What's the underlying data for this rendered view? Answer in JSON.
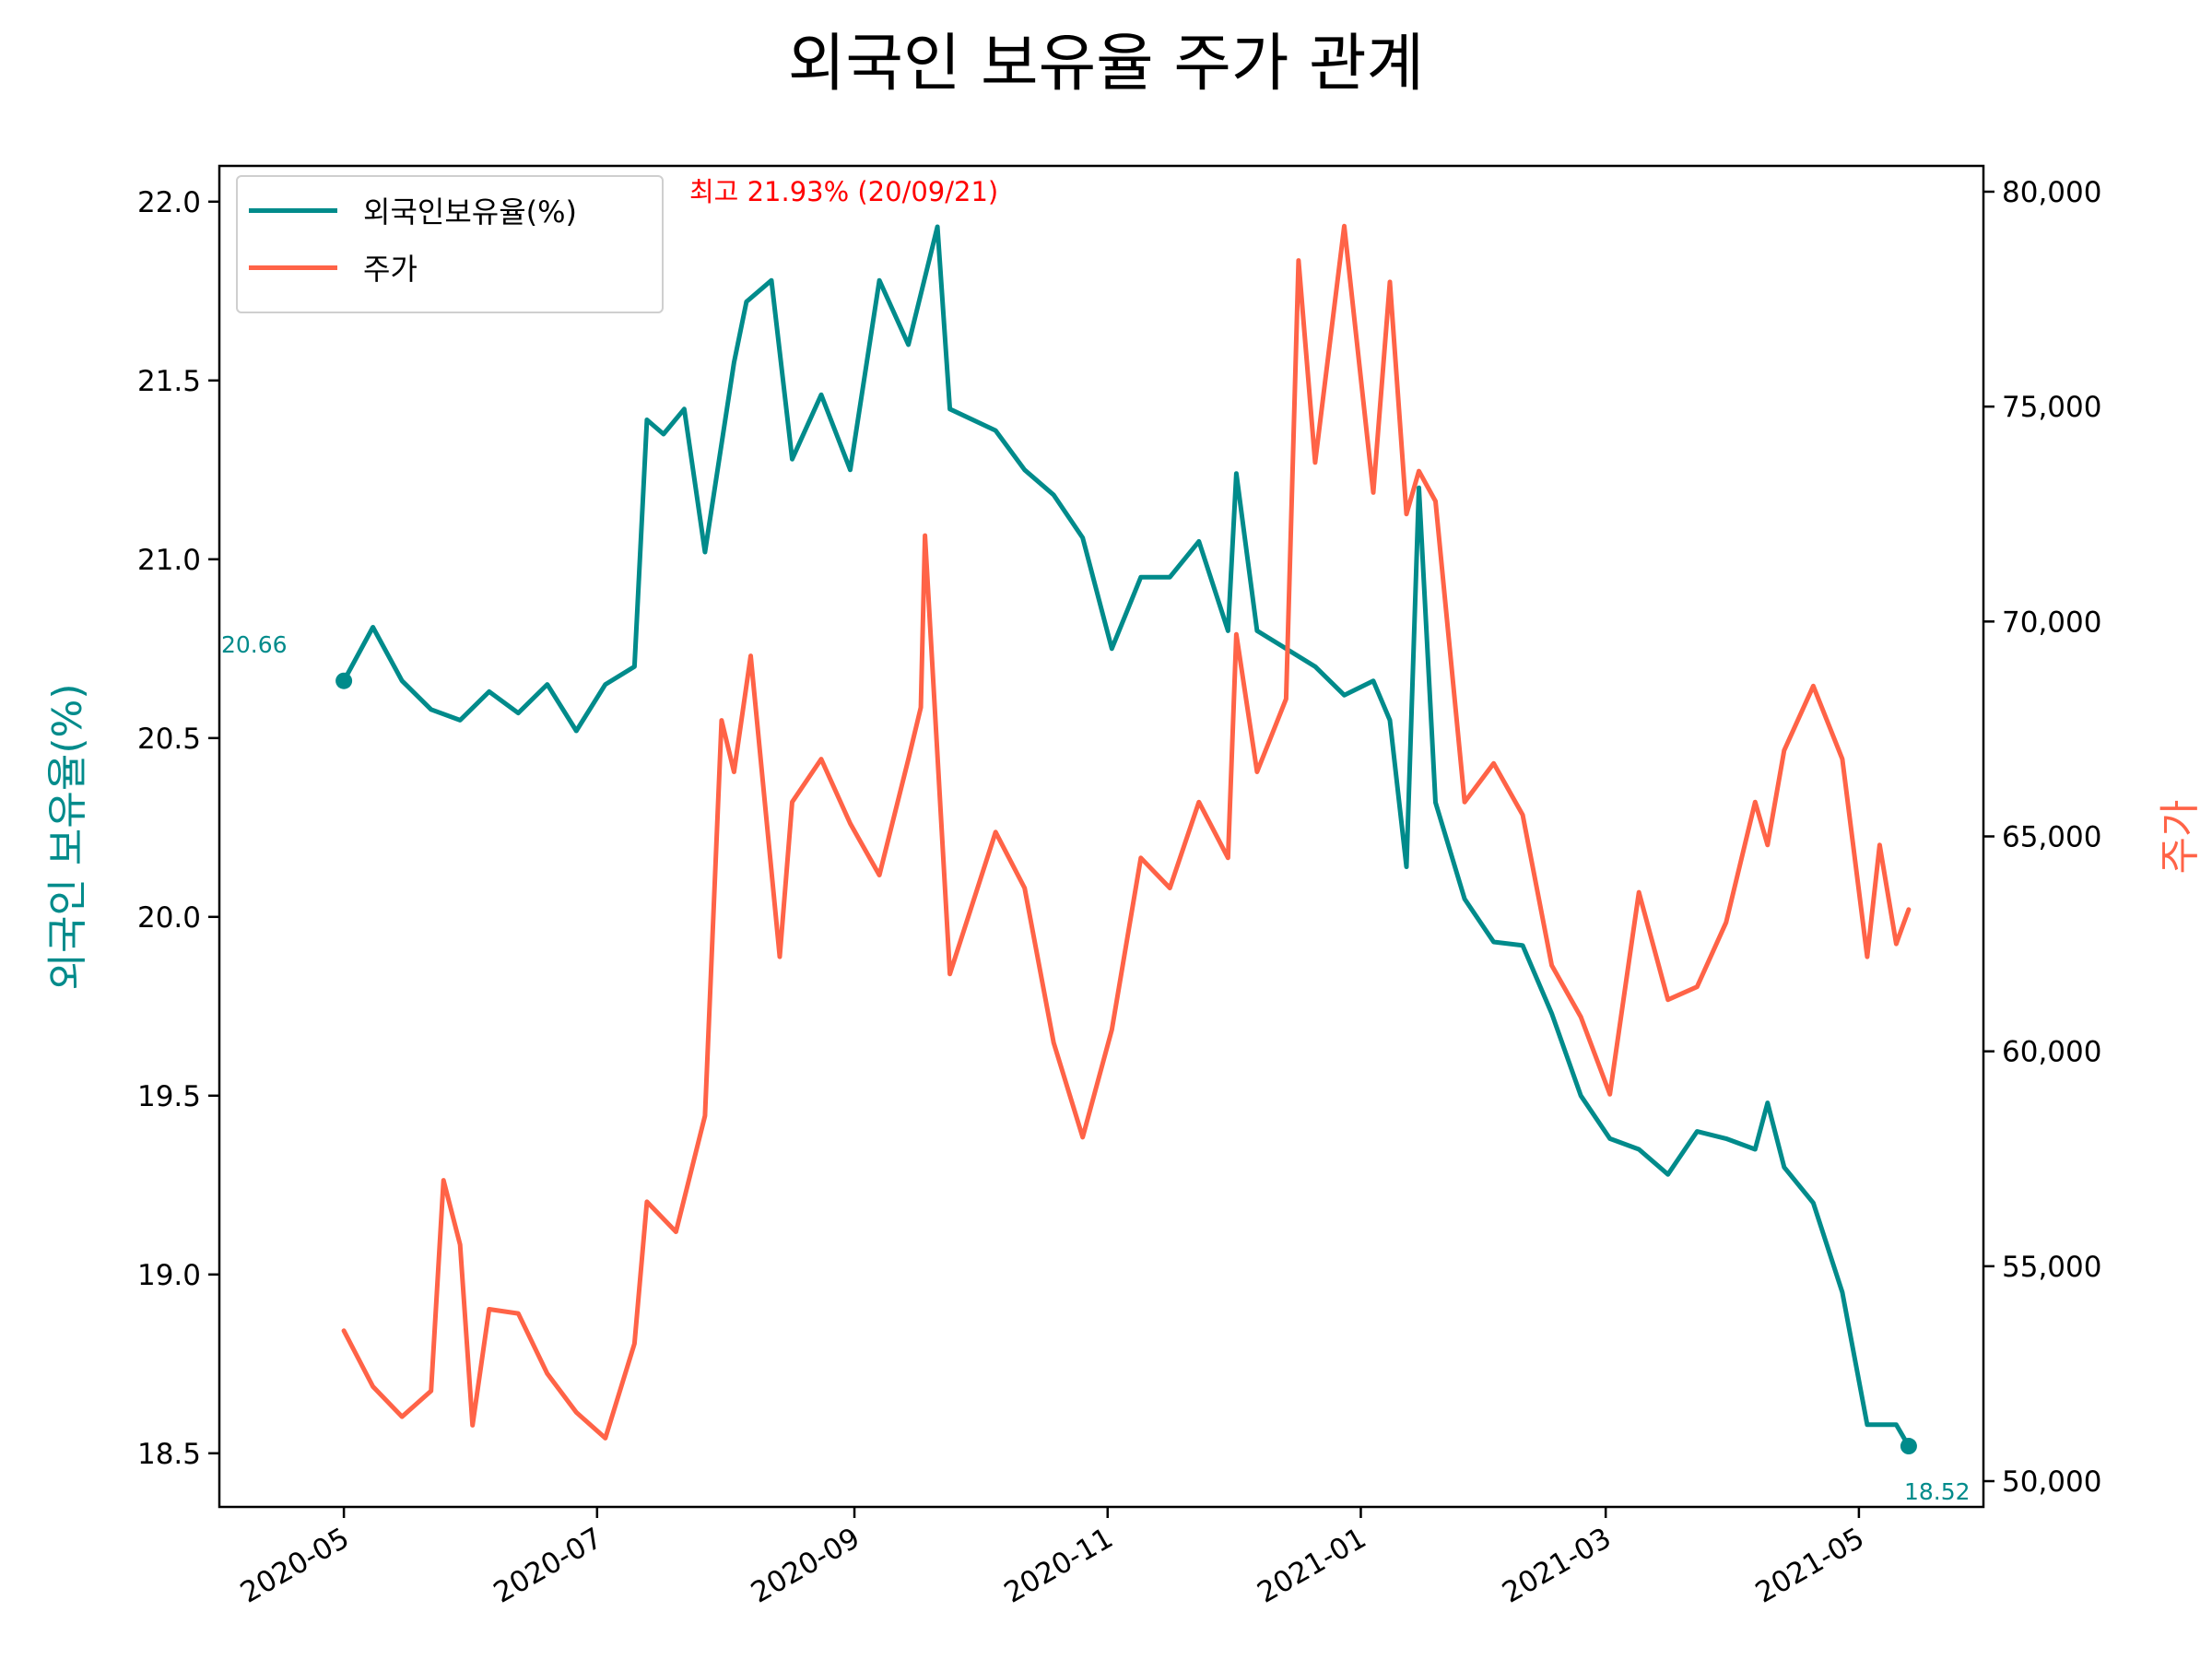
{
  "chart_data": {
    "type": "line",
    "title": "외국인 보유율 주가 관계",
    "xlabel": "",
    "ylabel_left": "외국인 보유율(%)",
    "ylabel_right": "주가",
    "x_ticks": [
      "2020-05",
      "2020-07",
      "2020-09",
      "2020-11",
      "2021-01",
      "2021-03",
      "2021-05"
    ],
    "y_left_ticks": [
      "18.5",
      "19.0",
      "19.5",
      "20.0",
      "20.5",
      "21.0",
      "21.5",
      "22.0"
    ],
    "y_right_ticks": [
      "50,000",
      "55,000",
      "60,000",
      "65,000",
      "70,000",
      "75,000",
      "80,000"
    ],
    "ylim_left": [
      18.35,
      22.1
    ],
    "ylim_right": [
      49400,
      80600
    ],
    "legend_position": "upper-left",
    "colors": {
      "holding": "#008b8b",
      "price": "#ff6347",
      "max_note": "#ff0000"
    },
    "annotations": {
      "max_label": "최고 21.93% (20/09/21)",
      "start_label": "20.66",
      "end_label": "18.52"
    },
    "series": [
      {
        "name": "외국인보유율(%)",
        "axis": "left",
        "points": [
          [
            "2020-05-01",
            20.66
          ],
          [
            "2020-05-08",
            20.81
          ],
          [
            "2020-05-15",
            20.66
          ],
          [
            "2020-05-22",
            20.58
          ],
          [
            "2020-05-29",
            20.55
          ],
          [
            "2020-06-05",
            20.63
          ],
          [
            "2020-06-12",
            20.57
          ],
          [
            "2020-06-19",
            20.65
          ],
          [
            "2020-06-26",
            20.52
          ],
          [
            "2020-07-03",
            20.65
          ],
          [
            "2020-07-10",
            20.7
          ],
          [
            "2020-07-13",
            21.39
          ],
          [
            "2020-07-17",
            21.35
          ],
          [
            "2020-07-22",
            21.42
          ],
          [
            "2020-07-27",
            21.02
          ],
          [
            "2020-08-03",
            21.55
          ],
          [
            "2020-08-06",
            21.72
          ],
          [
            "2020-08-12",
            21.78
          ],
          [
            "2020-08-17",
            21.28
          ],
          [
            "2020-08-24",
            21.46
          ],
          [
            "2020-08-31",
            21.25
          ],
          [
            "2020-09-07",
            21.78
          ],
          [
            "2020-09-14",
            21.6
          ],
          [
            "2020-09-21",
            21.93
          ],
          [
            "2020-09-24",
            21.42
          ],
          [
            "2020-10-05",
            21.36
          ],
          [
            "2020-10-12",
            21.25
          ],
          [
            "2020-10-19",
            21.18
          ],
          [
            "2020-10-26",
            21.06
          ],
          [
            "2020-11-02",
            20.75
          ],
          [
            "2020-11-09",
            20.95
          ],
          [
            "2020-11-16",
            20.95
          ],
          [
            "2020-11-23",
            21.05
          ],
          [
            "2020-11-30",
            20.8
          ],
          [
            "2020-12-02",
            21.24
          ],
          [
            "2020-12-07",
            20.8
          ],
          [
            "2020-12-14",
            20.75
          ],
          [
            "2020-12-21",
            20.7
          ],
          [
            "2020-12-28",
            20.62
          ],
          [
            "2021-01-04",
            20.66
          ],
          [
            "2021-01-08",
            20.55
          ],
          [
            "2021-01-12",
            20.14
          ],
          [
            "2021-01-15",
            21.2
          ],
          [
            "2021-01-19",
            20.32
          ],
          [
            "2021-01-26",
            20.05
          ],
          [
            "2021-02-02",
            19.93
          ],
          [
            "2021-02-09",
            19.92
          ],
          [
            "2021-02-16",
            19.73
          ],
          [
            "2021-02-23",
            19.5
          ],
          [
            "2021-03-02",
            19.38
          ],
          [
            "2021-03-09",
            19.35
          ],
          [
            "2021-03-16",
            19.28
          ],
          [
            "2021-03-23",
            19.4
          ],
          [
            "2021-03-30",
            19.38
          ],
          [
            "2021-04-06",
            19.35
          ],
          [
            "2021-04-09",
            19.48
          ],
          [
            "2021-04-13",
            19.3
          ],
          [
            "2021-04-20",
            19.2
          ],
          [
            "2021-04-27",
            18.95
          ],
          [
            "2021-05-03",
            18.58
          ],
          [
            "2021-05-10",
            18.58
          ],
          [
            "2021-05-13",
            18.52
          ]
        ]
      },
      {
        "name": "주가",
        "axis": "right",
        "points": [
          [
            "2020-05-01",
            53500
          ],
          [
            "2020-05-08",
            52200
          ],
          [
            "2020-05-15",
            51500
          ],
          [
            "2020-05-22",
            52100
          ],
          [
            "2020-05-25",
            57000
          ],
          [
            "2020-05-29",
            55500
          ],
          [
            "2020-06-01",
            51300
          ],
          [
            "2020-06-05",
            54000
          ],
          [
            "2020-06-12",
            53900
          ],
          [
            "2020-06-19",
            52500
          ],
          [
            "2020-06-26",
            51600
          ],
          [
            "2020-07-03",
            51000
          ],
          [
            "2020-07-10",
            53200
          ],
          [
            "2020-07-13",
            56500
          ],
          [
            "2020-07-20",
            55800
          ],
          [
            "2020-07-27",
            58500
          ],
          [
            "2020-07-31",
            67700
          ],
          [
            "2020-08-03",
            66500
          ],
          [
            "2020-08-07",
            69200
          ],
          [
            "2020-08-14",
            62200
          ],
          [
            "2020-08-17",
            65800
          ],
          [
            "2020-08-24",
            66800
          ],
          [
            "2020-08-31",
            65300
          ],
          [
            "2020-09-07",
            64100
          ],
          [
            "2020-09-14",
            66800
          ],
          [
            "2020-09-17",
            68000
          ],
          [
            "2020-09-18",
            72000
          ],
          [
            "2020-09-24",
            61800
          ],
          [
            "2020-10-05",
            65100
          ],
          [
            "2020-10-12",
            63800
          ],
          [
            "2020-10-19",
            60200
          ],
          [
            "2020-10-26",
            58000
          ],
          [
            "2020-11-02",
            60500
          ],
          [
            "2020-11-09",
            64500
          ],
          [
            "2020-11-16",
            63800
          ],
          [
            "2020-11-23",
            65800
          ],
          [
            "2020-11-30",
            64500
          ],
          [
            "2020-12-02",
            69700
          ],
          [
            "2020-12-07",
            66500
          ],
          [
            "2020-12-14",
            68200
          ],
          [
            "2020-12-17",
            78400
          ],
          [
            "2020-12-21",
            73700
          ],
          [
            "2020-12-28",
            79200
          ],
          [
            "2021-01-04",
            73000
          ],
          [
            "2021-01-08",
            77900
          ],
          [
            "2021-01-12",
            72500
          ],
          [
            "2021-01-15",
            73500
          ],
          [
            "2021-01-19",
            72800
          ],
          [
            "2021-01-26",
            65800
          ],
          [
            "2021-02-02",
            66700
          ],
          [
            "2021-02-09",
            65500
          ],
          [
            "2021-02-16",
            62000
          ],
          [
            "2021-02-23",
            60800
          ],
          [
            "2021-03-02",
            59000
          ],
          [
            "2021-03-09",
            63700
          ],
          [
            "2021-03-16",
            61200
          ],
          [
            "2021-03-23",
            61500
          ],
          [
            "2021-03-30",
            63000
          ],
          [
            "2021-04-06",
            65800
          ],
          [
            "2021-04-09",
            64800
          ],
          [
            "2021-04-13",
            67000
          ],
          [
            "2021-04-20",
            68500
          ],
          [
            "2021-04-27",
            66800
          ],
          [
            "2021-05-03",
            62200
          ],
          [
            "2021-05-06",
            64800
          ],
          [
            "2021-05-10",
            62500
          ],
          [
            "2021-05-13",
            63300
          ]
        ]
      }
    ]
  }
}
